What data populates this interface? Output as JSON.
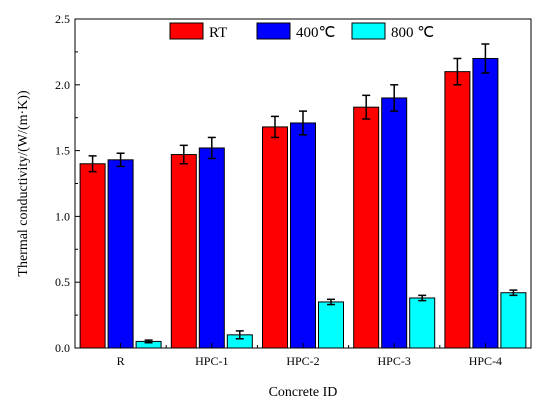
{
  "chart_data": {
    "type": "bar",
    "xlabel": "Concrete ID",
    "ylabel": "Thermal conductivity/(W/(m·K))",
    "ylim": [
      0,
      2.5
    ],
    "yticks": [
      "0.0",
      "0.5",
      "1.0",
      "1.5",
      "2.0",
      "2.5"
    ],
    "categories": [
      "R",
      "HPC-1",
      "HPC-2",
      "HPC-3",
      "HPC-4"
    ],
    "series": [
      {
        "name": "RT",
        "color": "#ff0000",
        "values": [
          1.4,
          1.47,
          1.68,
          1.83,
          2.1
        ],
        "errors": [
          0.06,
          0.07,
          0.08,
          0.09,
          0.1
        ]
      },
      {
        "name": "400℃",
        "color": "#0000ff",
        "values": [
          1.43,
          1.52,
          1.71,
          1.9,
          2.2
        ],
        "errors": [
          0.05,
          0.08,
          0.09,
          0.1,
          0.11
        ]
      },
      {
        "name": "800 ℃",
        "color": "#00ffff",
        "values": [
          0.05,
          0.1,
          0.35,
          0.38,
          0.42
        ],
        "errors": [
          0.01,
          0.03,
          0.02,
          0.02,
          0.02
        ]
      }
    ],
    "legend": {
      "position": "top-center"
    },
    "grid": false
  }
}
